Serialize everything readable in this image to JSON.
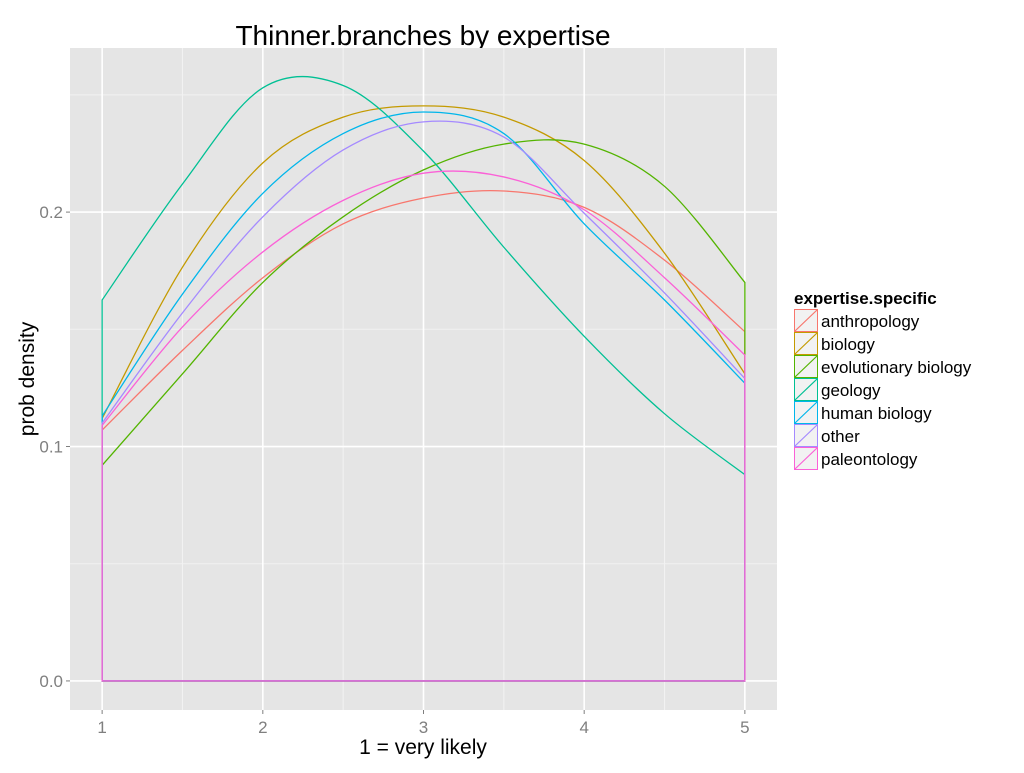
{
  "chart_data": {
    "type": "line",
    "title": "Thinner.branches  by expertise",
    "xlabel": "1 = very likely",
    "ylabel": "prob density",
    "xlim": [
      0.8,
      5.2
    ],
    "ylim": [
      -0.0124,
      0.27
    ],
    "x_ticks": [
      1,
      2,
      3,
      4,
      5
    ],
    "x_tick_labels": [
      "1",
      "2",
      "3",
      "4",
      "5"
    ],
    "y_ticks": [
      0.0,
      0.1,
      0.2
    ],
    "y_tick_labels": [
      "0.0",
      "0.1",
      "0.2"
    ],
    "grid": true,
    "legend": {
      "title": "expertise.specific",
      "placement": "right"
    },
    "x": [
      1,
      1.5,
      2,
      2.5,
      3,
      3.5,
      4,
      4.5,
      5
    ],
    "series": [
      {
        "name": "anthropology",
        "color": "#F8766D",
        "values": [
          0.107,
          0.141,
          0.172,
          0.195,
          0.206,
          0.209,
          0.202,
          0.1795,
          0.149
        ]
      },
      {
        "name": "biology",
        "color": "#C49A00",
        "values": [
          0.112,
          0.1765,
          0.221,
          0.2405,
          0.2453,
          0.2405,
          0.222,
          0.1825,
          0.131
        ]
      },
      {
        "name": "evolutionary biology",
        "color": "#53B400",
        "values": [
          0.092,
          0.131,
          0.17,
          0.198,
          0.218,
          0.229,
          0.229,
          0.211,
          0.17
        ]
      },
      {
        "name": "geology",
        "color": "#00C094",
        "values": [
          0.1625,
          0.212,
          0.253,
          0.254,
          0.226,
          0.185,
          0.147,
          0.114,
          0.088
        ]
      },
      {
        "name": "human biology",
        "color": "#00B6EB",
        "values": [
          0.113,
          0.165,
          0.208,
          0.2335,
          0.2427,
          0.2335,
          0.195,
          0.1625,
          0.127
        ]
      },
      {
        "name": "other",
        "color": "#A58AFF",
        "values": [
          0.11,
          0.157,
          0.198,
          0.2265,
          0.2385,
          0.232,
          0.1995,
          0.1655,
          0.129
        ]
      },
      {
        "name": "paleontology",
        "color": "#FB61D7",
        "values": [
          0.109,
          0.151,
          0.183,
          0.205,
          0.2166,
          0.215,
          0.201,
          0.172,
          0.139
        ]
      }
    ]
  }
}
